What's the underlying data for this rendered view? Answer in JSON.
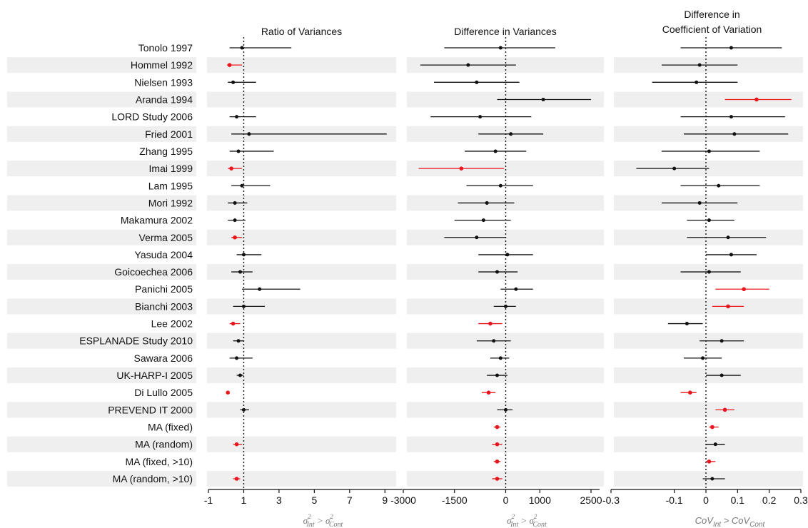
{
  "studies": [
    "Tonolo 1997",
    "Hommel 1992",
    "Nielsen 1993",
    "Aranda 1994",
    "LORD Study 2006",
    "Fried 2001",
    "Zhang 1995",
    "Imai 1999",
    "Lam 1995",
    "Mori 1992",
    "Makamura 2002",
    "Verma 2005",
    "Yasuda 2004",
    "Goicoechea 2006",
    "Panichi 2005",
    "Bianchi 2003",
    "Lee 2002",
    "ESPLANADE Study 2010",
    "Sawara 2006",
    "UK-HARP-I 2005",
    "Di Lullo 2005",
    "PREVEND IT 2000",
    "MA (fixed)",
    "MA (random)",
    "MA (fixed, >10)",
    "MA (random, >10)"
  ],
  "colors": {
    "normal": "#111111",
    "significant": "#e8161b",
    "band": "#efefef"
  },
  "chart_data": [
    {
      "type": "forest",
      "title": "Ratio of Variances",
      "xlabel": {
        "base": "σ",
        "sub1": "Int",
        "sup": "2",
        "gt": " > ",
        "sub2": "Cont"
      },
      "xlim": [
        -1,
        10
      ],
      "ticks": [
        -1,
        1,
        3,
        5,
        7,
        9
      ],
      "ref": 1,
      "points": [
        {
          "est": 0.9,
          "lo": 0.2,
          "hi": 3.7,
          "sig": false
        },
        {
          "est": 0.2,
          "lo": 0.05,
          "hi": 0.9,
          "sig": true
        },
        {
          "est": 0.4,
          "lo": 0.1,
          "hi": 1.7,
          "sig": false
        },
        {
          "est": null,
          "lo": null,
          "hi": null,
          "sig": false
        },
        {
          "est": 0.6,
          "lo": 0.2,
          "hi": 1.7,
          "sig": false
        },
        {
          "est": 1.3,
          "lo": 0.3,
          "hi": 9.1,
          "sig": false
        },
        {
          "est": 0.7,
          "lo": 0.2,
          "hi": 2.7,
          "sig": false
        },
        {
          "est": 0.3,
          "lo": 0.1,
          "hi": 0.9,
          "sig": true
        },
        {
          "est": 0.9,
          "lo": 0.3,
          "hi": 2.5,
          "sig": false
        },
        {
          "est": 0.5,
          "lo": 0.1,
          "hi": 1.2,
          "sig": false
        },
        {
          "est": 0.5,
          "lo": 0.1,
          "hi": 1.1,
          "sig": false
        },
        {
          "est": 0.5,
          "lo": 0.3,
          "hi": 0.9,
          "sig": true
        },
        {
          "est": 1.0,
          "lo": 0.6,
          "hi": 2.0,
          "sig": false
        },
        {
          "est": 0.8,
          "lo": 0.3,
          "hi": 1.5,
          "sig": false
        },
        {
          "est": 1.9,
          "lo": 0.9,
          "hi": 4.2,
          "sig": false
        },
        {
          "est": 1.0,
          "lo": 0.4,
          "hi": 2.2,
          "sig": false
        },
        {
          "est": 0.4,
          "lo": 0.2,
          "hi": 0.8,
          "sig": true
        },
        {
          "est": 0.7,
          "lo": 0.4,
          "hi": 1.0,
          "sig": false
        },
        {
          "est": 0.6,
          "lo": 0.2,
          "hi": 1.5,
          "sig": false
        },
        {
          "est": 0.8,
          "lo": 0.6,
          "hi": 1.0,
          "sig": false
        },
        {
          "est": 0.1,
          "lo": 0.05,
          "hi": 0.2,
          "sig": true
        },
        {
          "est": 1.0,
          "lo": 0.8,
          "hi": 1.3,
          "sig": false
        },
        {
          "est": null,
          "lo": null,
          "hi": null,
          "sig": false
        },
        {
          "est": 0.6,
          "lo": 0.4,
          "hi": 0.9,
          "sig": true
        },
        {
          "est": null,
          "lo": null,
          "hi": null,
          "sig": false
        },
        {
          "est": 0.6,
          "lo": 0.4,
          "hi": 0.8,
          "sig": true
        }
      ]
    },
    {
      "type": "forest",
      "title": "Difference in Variances",
      "xlabel": {
        "base": "σ",
        "sub1": "Int",
        "sup": "2",
        "gt": " > ",
        "sub2": "Cont"
      },
      "xlim": [
        -3000,
        2750
      ],
      "ticks": [
        -3000,
        -1500,
        0,
        1000,
        2500
      ],
      "ref": 0,
      "points": [
        {
          "est": -150,
          "lo": -1800,
          "hi": 1450,
          "sig": false
        },
        {
          "est": -1100,
          "lo": -2500,
          "hi": 300,
          "sig": false
        },
        {
          "est": -850,
          "lo": -2100,
          "hi": 400,
          "sig": false
        },
        {
          "est": 1100,
          "lo": -250,
          "hi": 2500,
          "sig": false
        },
        {
          "est": -750,
          "lo": -2200,
          "hi": 750,
          "sig": false
        },
        {
          "est": 150,
          "lo": -800,
          "hi": 1100,
          "sig": false
        },
        {
          "est": -300,
          "lo": -1200,
          "hi": 600,
          "sig": false
        },
        {
          "est": -1300,
          "lo": -2550,
          "hi": -50,
          "sig": true
        },
        {
          "est": -150,
          "lo": -1150,
          "hi": 800,
          "sig": false
        },
        {
          "est": -550,
          "lo": -1400,
          "hi": 250,
          "sig": false
        },
        {
          "est": -650,
          "lo": -1500,
          "hi": 150,
          "sig": false
        },
        {
          "est": -850,
          "lo": -1800,
          "hi": 0,
          "sig": false
        },
        {
          "est": 50,
          "lo": -800,
          "hi": 800,
          "sig": false
        },
        {
          "est": -250,
          "lo": -800,
          "hi": 350,
          "sig": false
        },
        {
          "est": 300,
          "lo": -150,
          "hi": 800,
          "sig": false
        },
        {
          "est": 0,
          "lo": -350,
          "hi": 300,
          "sig": false
        },
        {
          "est": -450,
          "lo": -800,
          "hi": -100,
          "sig": true
        },
        {
          "est": -350,
          "lo": -850,
          "hi": 150,
          "sig": false
        },
        {
          "est": -150,
          "lo": -450,
          "hi": 100,
          "sig": false
        },
        {
          "est": -250,
          "lo": -550,
          "hi": 50,
          "sig": false
        },
        {
          "est": -500,
          "lo": -700,
          "hi": -300,
          "sig": true
        },
        {
          "est": 0,
          "lo": -250,
          "hi": 200,
          "sig": false
        },
        {
          "est": -250,
          "lo": -350,
          "hi": -150,
          "sig": true
        },
        {
          "est": -250,
          "lo": -400,
          "hi": -100,
          "sig": true
        },
        {
          "est": -250,
          "lo": -350,
          "hi": -150,
          "sig": true
        },
        {
          "est": -250,
          "lo": -400,
          "hi": -100,
          "sig": true
        }
      ]
    },
    {
      "type": "forest",
      "title_lines": [
        "Difference in",
        "Coefficient of Variation"
      ],
      "xlabel": {
        "base": "CoV",
        "sub1": "Int",
        "gt": " > ",
        "base2": "CoV",
        "sub2": "Cont"
      },
      "xlim": [
        -0.3,
        0.3
      ],
      "ticks": [
        -0.3,
        -0.1,
        0,
        0.1,
        0.2,
        0.3
      ],
      "ref": 0,
      "points": [
        {
          "est": 0.08,
          "lo": -0.08,
          "hi": 0.24,
          "sig": false
        },
        {
          "est": -0.02,
          "lo": -0.14,
          "hi": 0.1,
          "sig": false
        },
        {
          "est": -0.03,
          "lo": -0.17,
          "hi": 0.1,
          "sig": false
        },
        {
          "est": 0.16,
          "lo": 0.06,
          "hi": 0.27,
          "sig": true
        },
        {
          "est": 0.08,
          "lo": -0.08,
          "hi": 0.25,
          "sig": false
        },
        {
          "est": 0.09,
          "lo": -0.07,
          "hi": 0.26,
          "sig": false
        },
        {
          "est": 0.01,
          "lo": -0.14,
          "hi": 0.17,
          "sig": false
        },
        {
          "est": -0.1,
          "lo": -0.22,
          "hi": 0.01,
          "sig": false
        },
        {
          "est": 0.04,
          "lo": -0.08,
          "hi": 0.17,
          "sig": false
        },
        {
          "est": -0.02,
          "lo": -0.14,
          "hi": 0.1,
          "sig": false
        },
        {
          "est": 0.01,
          "lo": -0.06,
          "hi": 0.09,
          "sig": false
        },
        {
          "est": 0.07,
          "lo": -0.06,
          "hi": 0.19,
          "sig": false
        },
        {
          "est": 0.08,
          "lo": 0.0,
          "hi": 0.16,
          "sig": false
        },
        {
          "est": 0.01,
          "lo": -0.08,
          "hi": 0.11,
          "sig": false
        },
        {
          "est": 0.12,
          "lo": 0.03,
          "hi": 0.2,
          "sig": true
        },
        {
          "est": 0.07,
          "lo": 0.02,
          "hi": 0.12,
          "sig": true
        },
        {
          "est": -0.06,
          "lo": -0.12,
          "hi": -0.01,
          "sig": false
        },
        {
          "est": 0.05,
          "lo": -0.02,
          "hi": 0.12,
          "sig": false
        },
        {
          "est": -0.01,
          "lo": -0.07,
          "hi": 0.05,
          "sig": false
        },
        {
          "est": 0.05,
          "lo": 0.0,
          "hi": 0.11,
          "sig": false
        },
        {
          "est": -0.05,
          "lo": -0.08,
          "hi": -0.03,
          "sig": true
        },
        {
          "est": 0.06,
          "lo": 0.03,
          "hi": 0.09,
          "sig": true
        },
        {
          "est": 0.02,
          "lo": 0.01,
          "hi": 0.04,
          "sig": true
        },
        {
          "est": 0.03,
          "lo": 0.0,
          "hi": 0.06,
          "sig": false
        },
        {
          "est": 0.01,
          "lo": 0.0,
          "hi": 0.03,
          "sig": true
        },
        {
          "est": 0.02,
          "lo": -0.01,
          "hi": 0.06,
          "sig": false
        }
      ]
    }
  ]
}
